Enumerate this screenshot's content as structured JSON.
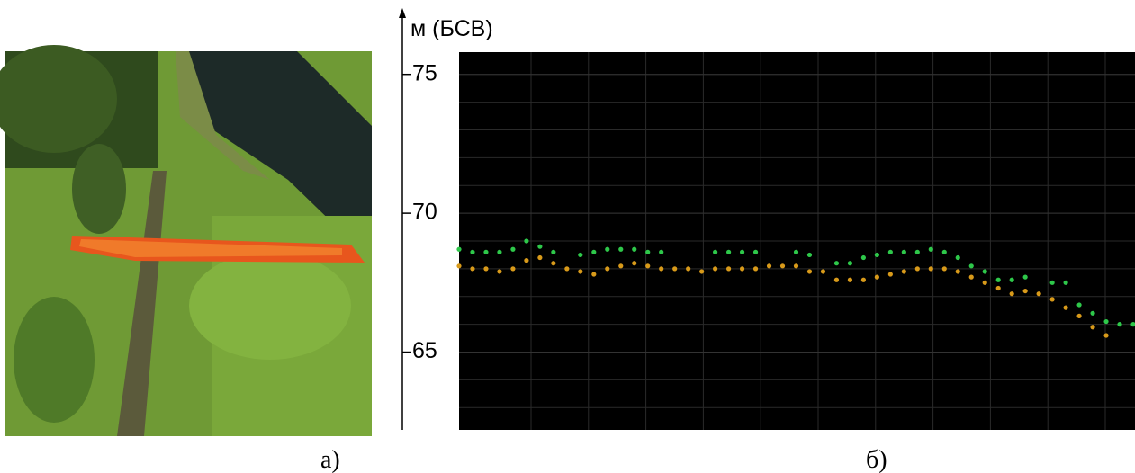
{
  "captions": [
    "а)",
    "б)"
  ],
  "chart_data": {
    "type": "scatter",
    "y_label": "м (БСВ)",
    "ylim": [
      62.2,
      75.8
    ],
    "yticks": [
      65,
      70,
      75
    ],
    "grid": true,
    "series": [
      {
        "name": null,
        "color": "#d89a1a",
        "values": [
          68.1,
          68.0,
          68.0,
          67.9,
          68.0,
          68.3,
          68.4,
          68.2,
          68.0,
          67.9,
          67.8,
          68.0,
          68.1,
          68.2,
          68.1,
          68.0,
          68.0,
          68.0,
          67.9,
          68.0,
          68.0,
          68.0,
          68.0,
          68.1,
          68.1,
          68.1,
          67.9,
          67.9,
          67.6,
          67.6,
          67.6,
          67.7,
          67.8,
          67.9,
          68.0,
          68.0,
          68.0,
          67.9,
          67.7,
          67.5,
          67.3,
          67.1,
          67.2,
          67.1,
          66.9,
          66.6,
          66.3,
          65.9,
          65.6,
          null,
          null
        ]
      },
      {
        "name": null,
        "color": "#2ec84a",
        "values": [
          68.7,
          68.6,
          68.6,
          68.6,
          68.7,
          69.0,
          68.8,
          68.6,
          null,
          68.5,
          68.6,
          68.7,
          68.7,
          68.7,
          68.6,
          68.6,
          null,
          null,
          null,
          68.6,
          68.6,
          68.6,
          68.6,
          null,
          null,
          68.6,
          68.5,
          null,
          68.2,
          68.2,
          68.4,
          68.5,
          68.6,
          68.6,
          68.6,
          68.7,
          68.6,
          68.4,
          68.1,
          67.9,
          67.6,
          67.6,
          67.7,
          null,
          67.5,
          67.5,
          66.7,
          66.4,
          66.1,
          66.0,
          66.0
        ]
      }
    ]
  }
}
